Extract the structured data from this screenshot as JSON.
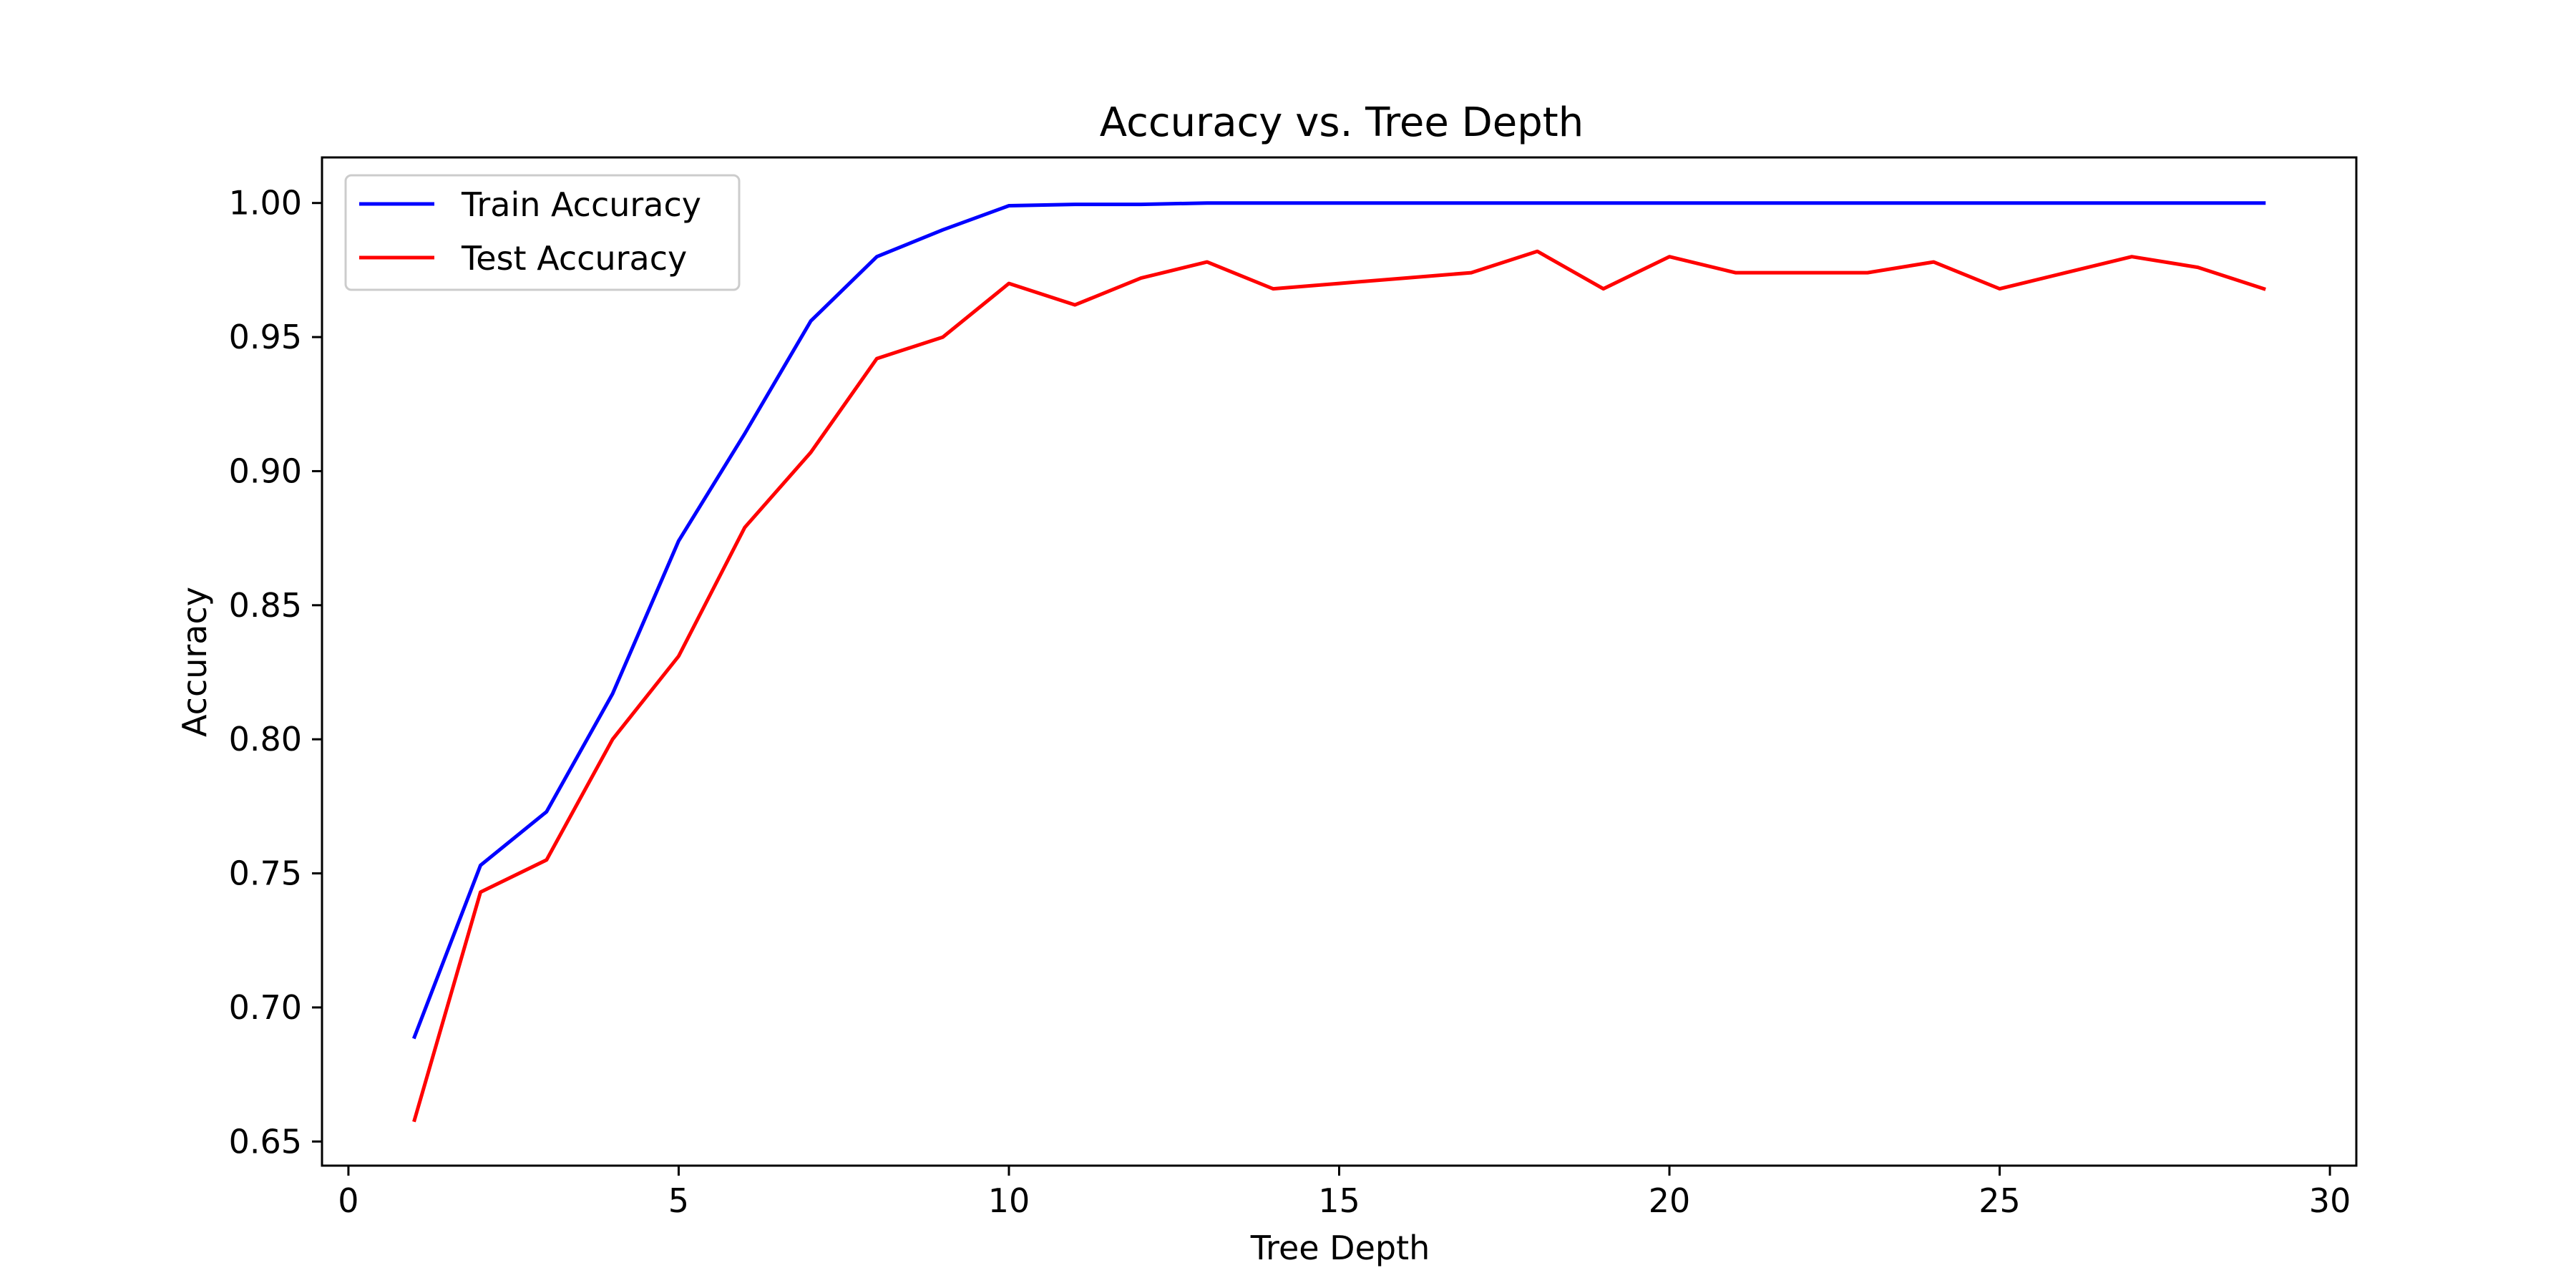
{
  "chart_data": {
    "type": "line",
    "title": "Accuracy vs. Tree Depth",
    "xlabel": "Tree Depth",
    "ylabel": "Accuracy",
    "xlim": [
      -0.4,
      30.4
    ],
    "ylim": [
      0.641,
      1.017
    ],
    "xticks": [
      0,
      5,
      10,
      15,
      20,
      25,
      30
    ],
    "yticks": [
      0.65,
      0.7,
      0.75,
      0.8,
      0.85,
      0.9,
      0.95,
      1.0
    ],
    "xtick_labels": [
      "0",
      "5",
      "10",
      "15",
      "20",
      "25",
      "30"
    ],
    "ytick_labels": [
      "0.65",
      "0.70",
      "0.75",
      "0.80",
      "0.85",
      "0.90",
      "0.95",
      "1.00"
    ],
    "grid": false,
    "legend_position": "upper-left",
    "x": [
      1,
      2,
      3,
      4,
      5,
      6,
      7,
      8,
      9,
      10,
      11,
      12,
      13,
      14,
      15,
      16,
      17,
      18,
      19,
      20,
      21,
      22,
      23,
      24,
      25,
      26,
      27,
      28,
      29
    ],
    "series": [
      {
        "name": "Train Accuracy",
        "color": "#0000ff",
        "values": [
          0.689,
          0.753,
          0.773,
          0.817,
          0.874,
          0.914,
          0.956,
          0.98,
          0.99,
          0.999,
          0.9995,
          0.9995,
          1.0,
          1.0,
          1.0,
          1.0,
          1.0,
          1.0,
          1.0,
          1.0,
          1.0,
          1.0,
          1.0,
          1.0,
          1.0,
          1.0,
          1.0,
          1.0,
          1.0
        ]
      },
      {
        "name": "Test Accuracy",
        "color": "#ff0000",
        "values": [
          0.658,
          0.743,
          0.755,
          0.8,
          0.831,
          0.879,
          0.907,
          0.942,
          0.95,
          0.97,
          0.962,
          0.972,
          0.978,
          0.968,
          0.97,
          0.972,
          0.974,
          0.982,
          0.968,
          0.98,
          0.974,
          0.974,
          0.974,
          0.978,
          0.968,
          0.974,
          0.98,
          0.976,
          0.968
        ]
      }
    ]
  }
}
